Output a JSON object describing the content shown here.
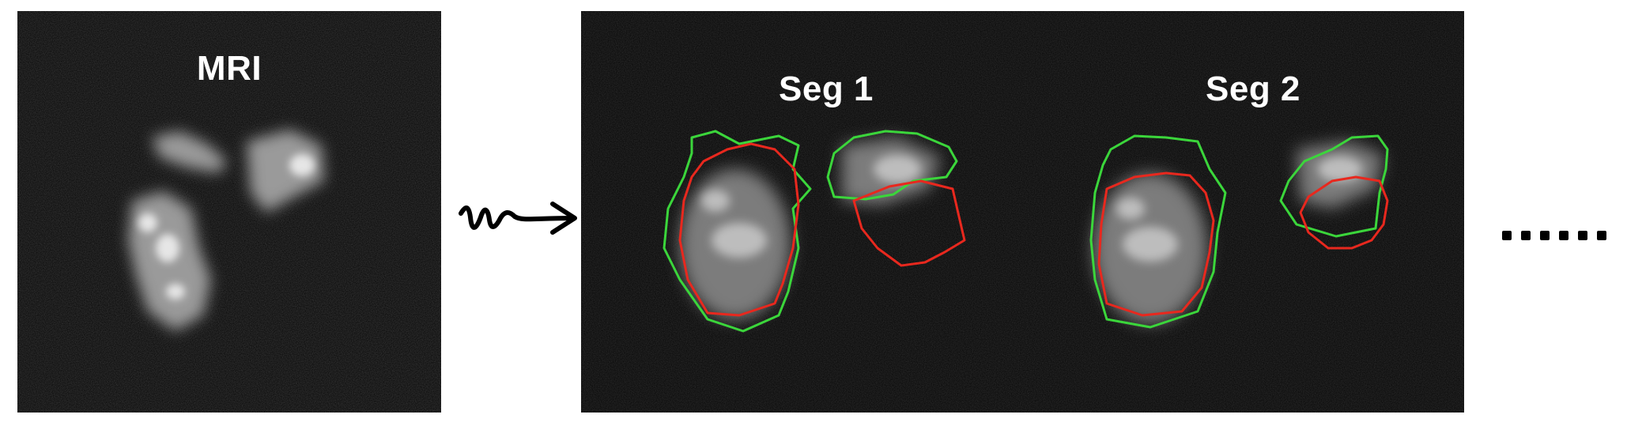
{
  "mri": {
    "label": "MRI"
  },
  "segmentations": [
    {
      "label": "Seg 1"
    },
    {
      "label": "Seg 2"
    }
  ],
  "colors": {
    "contour_a": "#3bd63b",
    "contour_b": "#e8281e",
    "background": "#030303"
  },
  "icons": {
    "arrow": "squiggly-arrow-icon",
    "continuation": "ellipsis-icon"
  }
}
